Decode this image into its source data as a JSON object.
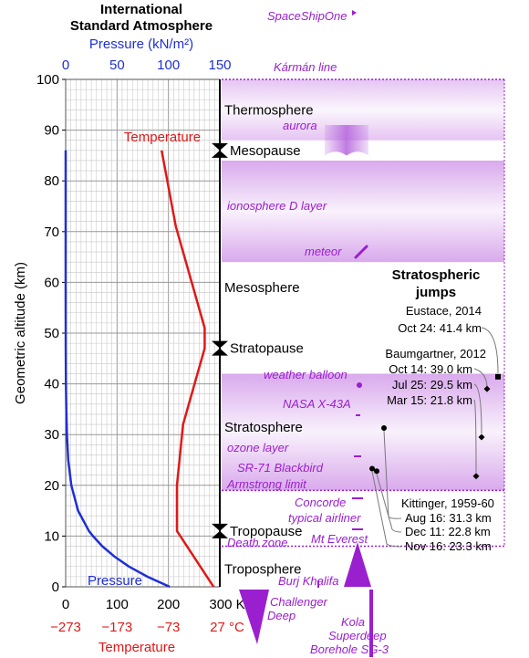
{
  "chart_data": {
    "type": "line",
    "title": "International Standard Atmosphere",
    "ylabel": "Geometric altitude (km)",
    "ylim": [
      0,
      100
    ],
    "yticks": [
      0,
      10,
      20,
      30,
      40,
      50,
      60,
      70,
      80,
      90,
      100
    ],
    "pressure_axis": {
      "label": "Pressure (kN/m²)",
      "range": [
        0,
        150
      ],
      "ticks": [
        "0",
        "50",
        "100",
        "150"
      ],
      "color": "#1f2fd6"
    },
    "temperature_axis": {
      "label": "Temperature",
      "range_k": [
        0,
        300
      ],
      "kelvin_ticks": [
        "0",
        "100",
        "200",
        "300 K"
      ],
      "celsius_ticks": [
        "−273",
        "−173",
        "−73",
        "27 °C"
      ],
      "color": "#e01818"
    },
    "series": [
      {
        "name": "Temperature",
        "unit": "K",
        "color": "#e01818",
        "points": [
          [
            288,
            0
          ],
          [
            216.5,
            11
          ],
          [
            216.5,
            20
          ],
          [
            228.5,
            32
          ],
          [
            270.5,
            47
          ],
          [
            270.5,
            51
          ],
          [
            214.5,
            71
          ],
          [
            186.8,
            86
          ]
        ]
      },
      {
        "name": "Pressure",
        "unit": "kN/m²",
        "color": "#1f2fd6",
        "points": [
          [
            101.3,
            0
          ],
          [
            79.5,
            2
          ],
          [
            61.6,
            4
          ],
          [
            47.2,
            6
          ],
          [
            35.6,
            8
          ],
          [
            26.5,
            10
          ],
          [
            22.6,
            11
          ],
          [
            12.1,
            15
          ],
          [
            5.5,
            20
          ],
          [
            2.5,
            25
          ],
          [
            1.2,
            30
          ],
          [
            0.6,
            35
          ],
          [
            0.3,
            40
          ],
          [
            0.1,
            47
          ],
          [
            0,
            60
          ],
          [
            0,
            86
          ]
        ]
      }
    ],
    "layers": [
      {
        "label": "Troposphere",
        "alt": 3.5
      },
      {
        "label": "Tropopause",
        "alt": 11
      },
      {
        "label": "Stratosphere",
        "alt": 31.5
      },
      {
        "label": "Stratopause",
        "alt": 47
      },
      {
        "label": "Mesosphere",
        "alt": 59
      },
      {
        "label": "Mesopause",
        "alt": 86
      },
      {
        "label": "Thermosphere",
        "alt": 94
      }
    ],
    "annotations": [
      {
        "label": "SpaceShipOne",
        "alt": 112
      },
      {
        "label": "Kármán line",
        "alt": 100
      },
      {
        "label": "aurora",
        "alt": 89
      },
      {
        "label": "ionosphere D layer",
        "alt": 74
      },
      {
        "label": "meteor",
        "alt": 66
      },
      {
        "label": "weather balloon",
        "alt": 41
      },
      {
        "label": "NASA X-43A",
        "alt": 35
      },
      {
        "label": "ozone layer",
        "alt": 27
      },
      {
        "label": "SR-71 Blackbird",
        "alt": 23
      },
      {
        "label": "Armstrong limit",
        "alt": 19.5
      },
      {
        "label": "Concorde",
        "alt": 16.5
      },
      {
        "label": "typical airliner",
        "alt": 13.5
      },
      {
        "label": "Death zone",
        "alt": 8
      },
      {
        "label": "Mt Everest",
        "alt": 8.8
      },
      {
        "label": "Burj Khalifa",
        "alt": 0.8
      },
      {
        "label": "Challenger Deep",
        "alt": -11
      },
      {
        "label": "Kola Superdeep Borehole SG-3",
        "alt": -12.3
      }
    ],
    "jumps": {
      "title": "Stratospheric jumps",
      "groups": [
        {
          "header": "Eustace, 2014",
          "entries": [
            "Oct 24: 41.4 km"
          ]
        },
        {
          "header": "Baumgartner, 2012",
          "entries": [
            "Oct 14: 39.0 km",
            "Jul 25: 29.5 km",
            "Mar 15: 21.8 km"
          ]
        },
        {
          "header": "Kittinger, 1959-60",
          "entries": [
            "Aug 16: 31.3 km",
            "Dec 11: 22.8 km",
            "Nov 16: 23.3 km"
          ]
        }
      ],
      "markers": [
        41.4,
        39.0,
        29.5,
        21.8,
        31.3,
        22.8,
        23.3
      ]
    },
    "grid": true
  }
}
